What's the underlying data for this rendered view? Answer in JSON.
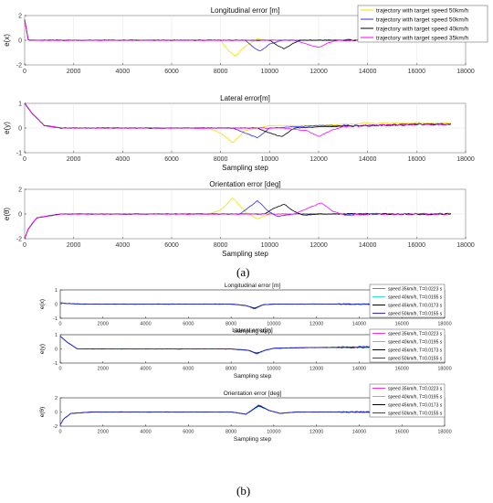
{
  "figure": {
    "label_a": "(a)",
    "label_b": "(b)"
  },
  "chart_data": [
    {
      "type": "line",
      "title": "Longitudinal error [m]",
      "xlabel": "",
      "ylabel": "e(x)",
      "xlim": [
        0,
        18000
      ],
      "ylim": [
        -2,
        2
      ],
      "xticks": [
        "0",
        "2000",
        "4000",
        "6000",
        "8000",
        "10000",
        "12000",
        "14000",
        "16000",
        "18000"
      ],
      "yticks": [
        "-2",
        "0",
        "2"
      ],
      "legend_position": "top-right",
      "grid": true,
      "series": [
        {
          "name": "trajectory with target speed 50km/h",
          "color": "#f0e000",
          "x": [
            0,
            150,
            400,
            2000,
            4000,
            6000,
            8000,
            8300,
            8600,
            9000,
            9500,
            10000,
            12000,
            14000,
            16000,
            17400
          ],
          "y": [
            1.7,
            0,
            0,
            0,
            0,
            0,
            0,
            -0.8,
            -1.3,
            -0.5,
            0.1,
            0,
            0,
            0,
            0,
            0
          ]
        },
        {
          "name": "trajectory with target speed 50km/h",
          "color": "#2b2bff",
          "x": [
            0,
            150,
            400,
            2000,
            4000,
            6000,
            8000,
            9000,
            9300,
            9600,
            10000,
            10500,
            12000,
            14000,
            16000,
            17400
          ],
          "y": [
            1.7,
            0,
            0,
            0,
            0,
            0,
            0,
            0,
            -0.5,
            -0.9,
            -0.3,
            0,
            0,
            0,
            0,
            0
          ]
        },
        {
          "name": "trajectory with target speed 40km/h",
          "color": "#000000",
          "x": [
            0,
            150,
            400,
            2000,
            4000,
            6000,
            8000,
            10000,
            10300,
            10600,
            11000,
            11300,
            12000,
            14000,
            16000,
            17400
          ],
          "y": [
            1.7,
            0,
            0,
            0,
            0,
            0,
            0,
            0,
            -0.4,
            -0.7,
            -0.2,
            0,
            0,
            0,
            0,
            0
          ]
        },
        {
          "name": "trajectory with target speed 35km/h",
          "color": "#ff00ff",
          "x": [
            0,
            150,
            400,
            2000,
            4000,
            6000,
            8000,
            11000,
            11500,
            12000,
            12400,
            12800,
            14000,
            16000,
            17400
          ],
          "y": [
            1.7,
            0,
            0,
            0,
            0,
            0,
            0,
            0,
            -0.3,
            -0.6,
            -0.2,
            0,
            0,
            0,
            0
          ]
        }
      ]
    },
    {
      "type": "line",
      "title": "Lateral error[m]",
      "xlabel": "Sampling step",
      "ylabel": "e(y)",
      "xlim": [
        0,
        18000
      ],
      "ylim": [
        -1,
        1
      ],
      "xticks": [
        "0",
        "2000",
        "4000",
        "6000",
        "8000",
        "10000",
        "12000",
        "14000",
        "16000",
        "18000"
      ],
      "yticks": [
        "-1",
        "0",
        "1"
      ],
      "grid": true,
      "series": [
        {
          "name": "trajectory with target speed 50km/h",
          "color": "#f0e000",
          "x": [
            0,
            300,
            800,
            1500,
            4000,
            7500,
            8000,
            8500,
            9000,
            10000,
            12000,
            14000,
            16000,
            17400
          ],
          "y": [
            1,
            0.6,
            0.1,
            0,
            0,
            0,
            -0.2,
            -0.6,
            -0.1,
            0.1,
            0.1,
            0.2,
            0.2,
            0.2
          ]
        },
        {
          "name": "trajectory with target speed 50km/h",
          "color": "#2b2bff",
          "x": [
            0,
            300,
            800,
            1500,
            4000,
            8500,
            9000,
            9500,
            10000,
            12000,
            14000,
            16000,
            17400
          ],
          "y": [
            1,
            0.6,
            0.1,
            0,
            0,
            0,
            -0.2,
            -0.4,
            0,
            0.1,
            0.1,
            0.15,
            0.15
          ]
        },
        {
          "name": "trajectory with target speed 40km/h",
          "color": "#000000",
          "x": [
            0,
            300,
            800,
            1500,
            4000,
            9500,
            10000,
            10500,
            11000,
            12000,
            14000,
            16000,
            17400
          ],
          "y": [
            1,
            0.6,
            0.1,
            0,
            0,
            0,
            -0.2,
            -0.35,
            0,
            0.05,
            0.1,
            0.15,
            0.15
          ]
        },
        {
          "name": "trajectory with target speed 35km/h",
          "color": "#ff00ff",
          "x": [
            0,
            300,
            800,
            1500,
            4000,
            10500,
            11500,
            12000,
            12500,
            13000,
            14000,
            16000,
            17400
          ],
          "y": [
            1,
            0.6,
            0.1,
            0,
            0,
            0,
            -0.1,
            -0.35,
            -0.1,
            0.05,
            0.1,
            0.15,
            0.15
          ]
        }
      ]
    },
    {
      "type": "line",
      "title": "Orientation error [deg]",
      "xlabel": "Sampling step",
      "ylabel": "e(θ)",
      "xlim": [
        0,
        18000
      ],
      "ylim": [
        -2,
        2
      ],
      "xticks": [
        "0",
        "2000",
        "4000",
        "6000",
        "8000",
        "10000",
        "12000",
        "14000",
        "16000",
        "18000"
      ],
      "yticks": [
        "-2",
        "0",
        "2"
      ],
      "grid": true,
      "series": [
        {
          "name": "trajectory with target speed 50km/h",
          "color": "#f0e000",
          "x": [
            0,
            150,
            500,
            1500,
            4000,
            7500,
            8000,
            8500,
            9000,
            9500,
            10000,
            12000,
            14000,
            16000,
            17400
          ],
          "y": [
            -2,
            -1.2,
            -0.3,
            0,
            0,
            0,
            0.3,
            1.3,
            0.2,
            -0.4,
            0,
            0,
            0,
            0,
            0
          ]
        },
        {
          "name": "trajectory with target speed 50km/h",
          "color": "#2b2bff",
          "x": [
            0,
            150,
            500,
            1500,
            4000,
            8800,
            9200,
            9500,
            9900,
            10300,
            11000,
            14000,
            17400
          ],
          "y": [
            -2,
            -1.2,
            -0.3,
            0,
            0,
            0,
            0.6,
            1.1,
            0.3,
            -0.2,
            0,
            0,
            0
          ]
        },
        {
          "name": "trajectory with target speed 40km/h",
          "color": "#000000",
          "x": [
            0,
            150,
            500,
            1500,
            4000,
            9800,
            10200,
            10600,
            11000,
            11400,
            12000,
            14000,
            17400
          ],
          "y": [
            -2,
            -1.2,
            -0.3,
            0,
            0,
            0,
            0.5,
            0.8,
            0.2,
            -0.1,
            0,
            0,
            0
          ]
        },
        {
          "name": "trajectory with target speed 35km/h",
          "color": "#ff00ff",
          "x": [
            0,
            150,
            500,
            1500,
            4000,
            11000,
            11600,
            12100,
            12600,
            13100,
            14000,
            17400
          ],
          "y": [
            -2,
            -1.2,
            -0.3,
            0,
            0,
            0,
            0.5,
            0.9,
            0.2,
            -0.1,
            0,
            0
          ]
        }
      ]
    },
    {
      "type": "line",
      "title": "Longitudinal error [m]",
      "xlabel": "Sampling step",
      "ylabel": "e(x)",
      "xlim": [
        0,
        18000
      ],
      "ylim": [
        -1,
        1
      ],
      "xticks": [
        "0",
        "2000",
        "4000",
        "6000",
        "8000",
        "10000",
        "12000",
        "14000",
        "16000",
        "18000"
      ],
      "yticks": [
        "-1",
        "0",
        "1"
      ],
      "legend_position": "top-right",
      "grid": false,
      "series": [
        {
          "name": "speed 35km/h, T=0.0223 s",
          "color": "#ff33cc",
          "x": [
            0,
            200,
            1000,
            4000,
            8000,
            8700,
            9100,
            9500,
            10000,
            12000,
            14000,
            16000,
            17400
          ],
          "y": [
            0.1,
            0.05,
            0,
            0,
            0,
            -0.1,
            -0.3,
            -0.05,
            0,
            0,
            0,
            0,
            0
          ]
        },
        {
          "name": "speed 40km/h, T=0.0195 s",
          "color": "#33dddd",
          "x": [
            0,
            200,
            1000,
            4000,
            8000,
            8700,
            9100,
            9500,
            10000,
            12000,
            14000,
            16000,
            17400
          ],
          "y": [
            0.1,
            0.05,
            0,
            0,
            0,
            -0.1,
            -0.28,
            -0.05,
            0,
            0,
            0,
            0,
            0
          ]
        },
        {
          "name": "speed 45km/h, T=0.0173 s",
          "color": "#000000",
          "x": [
            0,
            200,
            1000,
            4000,
            8000,
            8700,
            9100,
            9500,
            10000,
            12000,
            14000,
            16000,
            17400
          ],
          "y": [
            0.1,
            0.05,
            0,
            0,
            0,
            -0.1,
            -0.3,
            -0.05,
            0,
            0,
            0,
            0,
            0
          ]
        },
        {
          "name": "speed 50km/h, T=0.0155 s",
          "color": "#2b2bff",
          "x": [
            0,
            200,
            1000,
            4000,
            8000,
            8700,
            9100,
            9500,
            10000,
            12000,
            14000,
            16000,
            17400
          ],
          "y": [
            0.1,
            0.05,
            0,
            0,
            0,
            -0.1,
            -0.35,
            -0.05,
            0,
            0,
            0,
            0,
            0
          ]
        }
      ]
    },
    {
      "type": "line",
      "title": "Lateral error[m]",
      "xlabel": "Sampling step",
      "ylabel": "e(y)",
      "xlim": [
        0,
        18000
      ],
      "ylim": [
        -1,
        1
      ],
      "xticks": [
        "0",
        "2000",
        "4000",
        "6000",
        "8000",
        "10000",
        "12000",
        "14000",
        "16000",
        "18000"
      ],
      "yticks": [
        "-1",
        "0",
        "1"
      ],
      "legend_position": "top-right",
      "grid": false,
      "series": [
        {
          "name": "speed 35km/h, T=0.0223 s",
          "color": "#ff33cc",
          "x": [
            0,
            300,
            800,
            1500,
            8000,
            8800,
            9200,
            9600,
            10000,
            12000,
            14000,
            16000,
            17400
          ],
          "y": [
            0.9,
            0.5,
            0,
            0,
            0,
            -0.1,
            -0.3,
            -0.1,
            0.05,
            0.1,
            0.1,
            0.2,
            0.2
          ]
        },
        {
          "name": "speed 40km/h, T=0.0195 s",
          "color": "#33dddd",
          "x": [
            0,
            300,
            800,
            1500,
            8000,
            8800,
            9200,
            9600,
            10000,
            12000,
            14000,
            16000,
            17400
          ],
          "y": [
            0.9,
            0.5,
            0,
            0,
            0,
            -0.1,
            -0.3,
            -0.1,
            0.05,
            0.1,
            0.1,
            0.2,
            0.2
          ]
        },
        {
          "name": "speed 45km/h, T=0.0173 s",
          "color": "#000000",
          "x": [
            0,
            300,
            800,
            1500,
            8000,
            8800,
            9200,
            9600,
            10000,
            12000,
            14000,
            16000,
            17400
          ],
          "y": [
            0.9,
            0.5,
            0,
            0,
            0,
            -0.1,
            -0.3,
            -0.1,
            0.05,
            0.1,
            0.1,
            0.2,
            0.2
          ]
        },
        {
          "name": "speed 50km/h, T=0.0155 s",
          "color": "#2b2bff",
          "x": [
            0,
            300,
            800,
            1500,
            8000,
            8800,
            9200,
            9600,
            10000,
            12000,
            14000,
            16000,
            17400
          ],
          "y": [
            0.9,
            0.5,
            0,
            0,
            0,
            -0.1,
            -0.35,
            -0.1,
            0.05,
            0.1,
            0.15,
            0.2,
            0.2
          ]
        }
      ]
    },
    {
      "type": "line",
      "title": "Orientation error [deg]",
      "xlabel": "Sampling step",
      "ylabel": "e(θ)",
      "xlim": [
        0,
        18000
      ],
      "ylim": [
        -2,
        2
      ],
      "xticks": [
        "0",
        "2000",
        "4000",
        "6000",
        "8000",
        "10000",
        "12000",
        "14000",
        "16000",
        "18000"
      ],
      "yticks": [
        "-2",
        "0",
        "2"
      ],
      "legend_position": "top-right",
      "grid": false,
      "series": [
        {
          "name": "speed 35km/h, T=0.0223 s",
          "color": "#ff33cc",
          "x": [
            0,
            150,
            500,
            1500,
            8000,
            8700,
            9300,
            9800,
            10300,
            11000,
            14000,
            17400
          ],
          "y": [
            -1.8,
            -1,
            -0.2,
            0,
            0,
            -0.3,
            0.9,
            0.2,
            -0.2,
            0,
            0,
            0
          ]
        },
        {
          "name": "speed 40km/h, T=0.0195 s",
          "color": "#33dddd",
          "x": [
            0,
            150,
            500,
            1500,
            8000,
            8700,
            9300,
            9800,
            10300,
            11000,
            14000,
            17400
          ],
          "y": [
            -1.8,
            -1,
            -0.2,
            0,
            0,
            -0.3,
            0.8,
            0.2,
            -0.2,
            0,
            0,
            0
          ]
        },
        {
          "name": "speed 45km/h, T=0.0173 s",
          "color": "#000000",
          "x": [
            0,
            150,
            500,
            1500,
            8000,
            8700,
            9300,
            9800,
            10300,
            11000,
            14000,
            17400
          ],
          "y": [
            -1.8,
            -1,
            -0.2,
            0,
            0,
            -0.3,
            0.9,
            0.2,
            -0.2,
            0,
            0,
            0
          ]
        },
        {
          "name": "speed 50km/h, T=0.0155 s",
          "color": "#2b2bff",
          "x": [
            0,
            150,
            500,
            1500,
            8000,
            8700,
            9300,
            9800,
            10300,
            11000,
            14000,
            17400
          ],
          "y": [
            -1.8,
            -1,
            -0.2,
            0,
            0,
            -0.3,
            1.0,
            0.2,
            -0.2,
            0,
            0,
            0
          ]
        }
      ]
    }
  ]
}
